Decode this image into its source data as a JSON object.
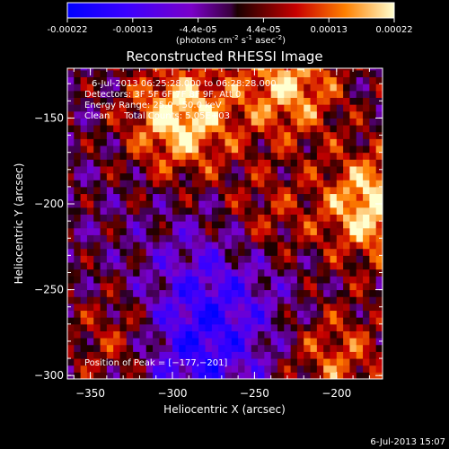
{
  "colorbar": {
    "ticks": [
      "-0.00022",
      "-0.00013",
      "-4.4e-05",
      "4.4e-05",
      "0.00013",
      "0.00022"
    ],
    "unit_parts": {
      "pre": "(photons cm",
      "sup1": "-2",
      "mid": " s",
      "sup2": "-1",
      "post": " asec",
      "sup3": "-2",
      "end": ")"
    }
  },
  "footer": {
    "timestamp": "6-Jul-2013 15:07"
  },
  "chart_data": {
    "type": "heatmap",
    "title": "Reconstructed RHESSI Image",
    "xlabel": "Heliocentric X (arcsec)",
    "ylabel": "Heliocentric Y (arcsec)",
    "xlim": [
      -364,
      -172
    ],
    "ylim": [
      -302,
      -121
    ],
    "x_ticks": [
      -350,
      -300,
      -250,
      -200
    ],
    "y_ticks": [
      -300,
      -250,
      -200,
      -150
    ],
    "x_tick_labels": [
      "−350",
      "−300",
      "−250",
      "−200"
    ],
    "y_tick_labels": [
      "−300",
      "−250",
      "−200",
      "−150"
    ],
    "annotations": [
      "6-Jul-2013 06:25:28.000 to 06:28:28.000",
      "Detectors: 3F 5F 6F 7F 8F 9F, Att 0",
      "Energy Range: 25.0 - 50.0 keV",
      "Clean     Total Counts: 5.05E+03"
    ],
    "peak_label": "Position of Peak = [−177,−201]",
    "peak": {
      "x": -177,
      "y": -201
    },
    "colormap": "rainbow-hot",
    "value_range": [
      -0.00022,
      0.00022
    ],
    "bright_regions": [
      {
        "x": -295,
        "y": -150,
        "value": 0.00022
      },
      {
        "x": -229,
        "y": -131,
        "value": 0.00018
      },
      {
        "x": -177,
        "y": -201,
        "value": 0.00022
      },
      {
        "x": -244,
        "y": -210,
        "value": 0.0001
      },
      {
        "x": -330,
        "y": -280,
        "value": 0.00012
      },
      {
        "x": -200,
        "y": -290,
        "value": 0.00012
      }
    ],
    "dim_regions": [
      {
        "x": -290,
        "y": -285,
        "value": -0.00015
      },
      {
        "x": -265,
        "y": -240,
        "value": -8e-05
      }
    ]
  }
}
